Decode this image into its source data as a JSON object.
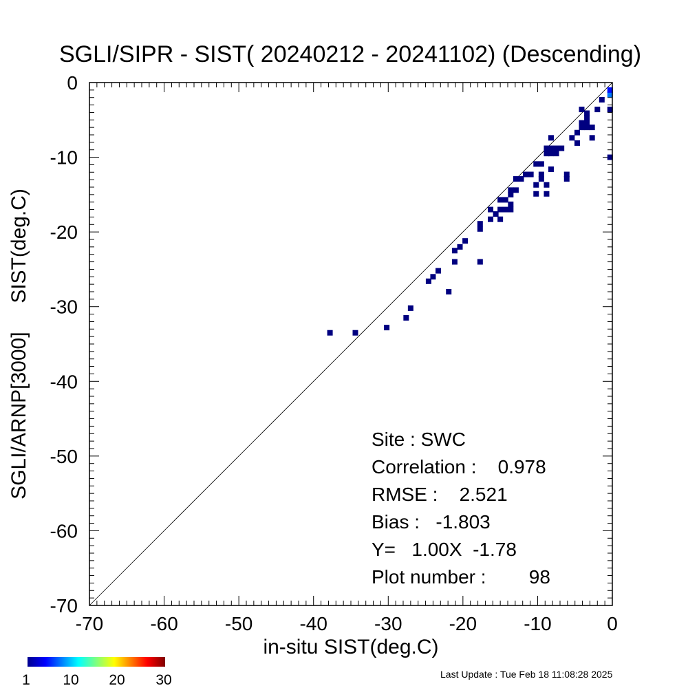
{
  "chart_data": {
    "type": "scatter",
    "title": "SGLI/SIPR - SIST( 20240212 - 20241102) (Descending)",
    "xlabel": "in-situ SIST(deg.C)",
    "ylabel": "SGLI/ARNP[3000]     SIST(deg.C)",
    "xlim": [
      -70,
      0
    ],
    "ylim": [
      -70,
      0
    ],
    "xticks": [
      -70,
      -60,
      -50,
      -40,
      -30,
      -20,
      -10,
      0
    ],
    "yticks": [
      -70,
      -60,
      -50,
      -40,
      -30,
      -20,
      -10,
      0
    ],
    "grid": false,
    "reference_line": "1:1",
    "stats": {
      "site": "Site : SWC",
      "correlation": "Correlation :    0.978",
      "rmse": "RMSE :    2.521",
      "bias": "Bias :   -1.803",
      "fit": "Y=   1.00X  -1.78",
      "plot_number": "Plot number :        98"
    },
    "colorbar": {
      "labels": [
        "1",
        "10",
        "20",
        "30"
      ],
      "min": 1,
      "max": 30
    },
    "points": [
      {
        "x": -37.8,
        "y": -33.5,
        "c": 1
      },
      {
        "x": -34.4,
        "y": -33.5,
        "c": 1
      },
      {
        "x": -30.2,
        "y": -32.8,
        "c": 1
      },
      {
        "x": -27.6,
        "y": -31.5,
        "c": 1
      },
      {
        "x": -27.0,
        "y": -30.2,
        "c": 1
      },
      {
        "x": -24.6,
        "y": -26.6,
        "c": 1
      },
      {
        "x": -24.0,
        "y": -26.0,
        "c": 1
      },
      {
        "x": -23.3,
        "y": -25.2,
        "c": 1
      },
      {
        "x": -21.9,
        "y": -28.0,
        "c": 1
      },
      {
        "x": -21.1,
        "y": -24.0,
        "c": 1
      },
      {
        "x": -21.1,
        "y": -22.5,
        "c": 1
      },
      {
        "x": -20.4,
        "y": -22.0,
        "c": 1
      },
      {
        "x": -19.7,
        "y": -21.2,
        "c": 1
      },
      {
        "x": -17.7,
        "y": -19.6,
        "c": 1
      },
      {
        "x": -17.7,
        "y": -18.9,
        "c": 1
      },
      {
        "x": -17.7,
        "y": -24.0,
        "c": 1
      },
      {
        "x": -16.3,
        "y": -18.3,
        "c": 1
      },
      {
        "x": -16.3,
        "y": -17.0,
        "c": 1
      },
      {
        "x": -15.6,
        "y": -17.6,
        "c": 1
      },
      {
        "x": -15.0,
        "y": -18.3,
        "c": 1
      },
      {
        "x": -15.0,
        "y": -17.0,
        "c": 1
      },
      {
        "x": -15.0,
        "y": -15.7,
        "c": 1
      },
      {
        "x": -14.3,
        "y": -17.0,
        "c": 1
      },
      {
        "x": -14.3,
        "y": -15.7,
        "c": 1
      },
      {
        "x": -13.6,
        "y": -17.0,
        "c": 1
      },
      {
        "x": -13.6,
        "y": -16.3,
        "c": 1
      },
      {
        "x": -13.6,
        "y": -15.0,
        "c": 1
      },
      {
        "x": -13.6,
        "y": -14.4,
        "c": 1
      },
      {
        "x": -12.9,
        "y": -14.4,
        "c": 1
      },
      {
        "x": -12.9,
        "y": -12.9,
        "c": 1
      },
      {
        "x": -12.2,
        "y": -12.9,
        "c": 1
      },
      {
        "x": -11.6,
        "y": -12.3,
        "c": 1
      },
      {
        "x": -10.9,
        "y": -12.3,
        "c": 1
      },
      {
        "x": -10.2,
        "y": -13.7,
        "c": 1
      },
      {
        "x": -10.2,
        "y": -10.9,
        "c": 1
      },
      {
        "x": -10.2,
        "y": -14.9,
        "c": 1
      },
      {
        "x": -9.5,
        "y": -10.9,
        "c": 1
      },
      {
        "x": -9.5,
        "y": -12.3,
        "c": 1
      },
      {
        "x": -9.5,
        "y": -12.9,
        "c": 1
      },
      {
        "x": -8.8,
        "y": -13.7,
        "c": 1
      },
      {
        "x": -8.8,
        "y": -14.9,
        "c": 1
      },
      {
        "x": -8.8,
        "y": -9.5,
        "c": 1
      },
      {
        "x": -8.8,
        "y": -8.8,
        "c": 1
      },
      {
        "x": -8.2,
        "y": -11.6,
        "c": 1
      },
      {
        "x": -8.2,
        "y": -9.5,
        "c": 1
      },
      {
        "x": -8.2,
        "y": -8.8,
        "c": 1
      },
      {
        "x": -8.2,
        "y": -7.4,
        "c": 1
      },
      {
        "x": -7.5,
        "y": -9.5,
        "c": 1
      },
      {
        "x": -7.5,
        "y": -8.8,
        "c": 1
      },
      {
        "x": -6.8,
        "y": -8.8,
        "c": 1
      },
      {
        "x": -6.1,
        "y": -12.3,
        "c": 1
      },
      {
        "x": -6.1,
        "y": -12.9,
        "c": 1
      },
      {
        "x": -5.4,
        "y": -7.4,
        "c": 1
      },
      {
        "x": -4.7,
        "y": -8.1,
        "c": 1
      },
      {
        "x": -4.7,
        "y": -6.7,
        "c": 1
      },
      {
        "x": -4.1,
        "y": -6.0,
        "c": 1
      },
      {
        "x": -4.1,
        "y": -5.4,
        "c": 1
      },
      {
        "x": -4.1,
        "y": -3.6,
        "c": 1
      },
      {
        "x": -3.4,
        "y": -6.0,
        "c": 1
      },
      {
        "x": -3.4,
        "y": -5.4,
        "c": 1
      },
      {
        "x": -3.4,
        "y": -4.7,
        "c": 1
      },
      {
        "x": -3.4,
        "y": -4.1,
        "c": 1
      },
      {
        "x": -2.7,
        "y": -6.0,
        "c": 1
      },
      {
        "x": -2.7,
        "y": -7.4,
        "c": 1
      },
      {
        "x": -2.0,
        "y": -3.6,
        "c": 1
      },
      {
        "x": -1.4,
        "y": -2.3,
        "c": 1
      },
      {
        "x": -0.3,
        "y": -3.6,
        "c": 1
      },
      {
        "x": -0.3,
        "y": -10.0,
        "c": 1
      },
      {
        "x": -0.3,
        "y": -1.6,
        "c": 8
      },
      {
        "x": -0.3,
        "y": -1.0,
        "c": 5
      }
    ]
  },
  "footer": {
    "last_update": "Last Update : Tue Feb 18 11:08:28 2025"
  }
}
